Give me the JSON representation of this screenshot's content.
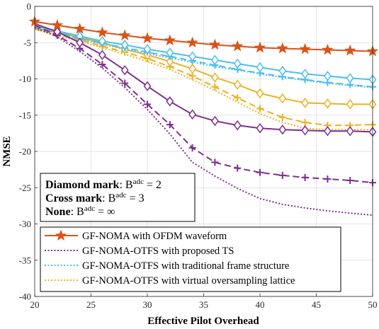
{
  "chart_data": {
    "type": "line",
    "xlabel": "Effective Pilot Overhead",
    "ylabel": "NMSE",
    "xlim": [
      20,
      50
    ],
    "ylim": [
      -40,
      0
    ],
    "xticks": [
      20,
      25,
      30,
      35,
      40,
      45,
      50
    ],
    "yticks": [
      0,
      -5,
      -10,
      -15,
      -20,
      -25,
      -30,
      -35,
      -40
    ],
    "grid": true,
    "annotation": {
      "lines": [
        {
          "bold": "Diamond mark",
          "rest": ": B",
          "sup": "adc",
          "value": " = 2"
        },
        {
          "bold": "Cross mark",
          "rest": ": B",
          "sup": "adc",
          "value": " = 3"
        },
        {
          "bold": "None",
          "rest": ": B",
          "sup": "adc",
          "value": " = ∞"
        }
      ]
    },
    "legend": {
      "position": "bottom-left",
      "entries": [
        {
          "label": "GF-NOMA with OFDM waveform",
          "color": "#D95319",
          "style": "solid",
          "marker": "star"
        },
        {
          "label": "GF-NOMA-OTFS with proposed TS",
          "color": "#7E2F8E",
          "style": "dotted",
          "marker": "none"
        },
        {
          "label": "GF-NOMA-OTFS with traditional frame structure",
          "color": "#4DBEEE",
          "style": "dotted",
          "marker": "none"
        },
        {
          "label": "GF-NOMA-OTFS with virtual oversampling lattice",
          "color": "#EDB120",
          "style": "dotted",
          "marker": "none"
        }
      ]
    },
    "series": [
      {
        "group": "GF-NOMA with OFDM waveform",
        "color": "#D95319",
        "style": "solid",
        "marker": "star",
        "x": [
          20,
          22,
          24,
          26,
          28,
          30,
          32,
          34,
          36,
          38,
          40,
          42,
          44,
          46,
          48,
          50
        ],
        "y": [
          -2.1,
          -2.6,
          -3.1,
          -3.6,
          -4.0,
          -4.4,
          -4.7,
          -5.0,
          -5.3,
          -5.5,
          -5.7,
          -5.8,
          -5.9,
          -6.0,
          -6.1,
          -6.2
        ]
      },
      {
        "group": "GF-NOMA-OTFS with proposed TS",
        "color": "#7E2F8E",
        "style": "solid",
        "marker": "diamond",
        "x": [
          20,
          22,
          24,
          26,
          28,
          30,
          32,
          34,
          36,
          38,
          40,
          42,
          44,
          46,
          48,
          50
        ],
        "y": [
          -2.4,
          -3.5,
          -5.0,
          -6.7,
          -8.8,
          -11.0,
          -13.1,
          -14.9,
          -15.8,
          -16.4,
          -16.8,
          -17.0,
          -17.1,
          -17.2,
          -17.2,
          -17.3
        ]
      },
      {
        "group": "GF-NOMA-OTFS with proposed TS",
        "color": "#7E2F8E",
        "style": "dashed",
        "marker": "plus",
        "x": [
          20,
          22,
          24,
          26,
          28,
          30,
          32,
          34,
          36,
          38,
          40,
          42,
          44,
          46,
          48,
          50
        ],
        "y": [
          -2.6,
          -4.0,
          -5.8,
          -8.0,
          -10.6,
          -13.5,
          -16.3,
          -19.5,
          -21.5,
          -22.3,
          -22.9,
          -23.3,
          -23.6,
          -23.8,
          -24.0,
          -24.3
        ]
      },
      {
        "group": "GF-NOMA-OTFS with proposed TS",
        "color": "#7E2F8E",
        "style": "dotted",
        "marker": "none",
        "x": [
          20,
          22,
          24,
          26,
          28,
          30,
          32,
          34,
          36,
          38,
          40,
          42,
          44,
          46,
          48,
          50
        ],
        "y": [
          -2.9,
          -4.2,
          -6.2,
          -8.5,
          -11.2,
          -14.2,
          -17.6,
          -21.5,
          -23.4,
          -25.1,
          -26.5,
          -27.3,
          -27.8,
          -28.2,
          -28.5,
          -28.8
        ]
      },
      {
        "group": "GF-NOMA-OTFS with traditional frame structure",
        "color": "#4DBEEE",
        "style": "solid",
        "marker": "diamond",
        "x": [
          20,
          22,
          24,
          26,
          28,
          30,
          32,
          34,
          36,
          38,
          40,
          42,
          44,
          46,
          48,
          50
        ],
        "y": [
          -2.7,
          -3.4,
          -4.1,
          -4.8,
          -5.3,
          -5.9,
          -6.4,
          -6.9,
          -7.4,
          -7.9,
          -8.4,
          -8.9,
          -9.3,
          -9.6,
          -9.9,
          -10.1
        ]
      },
      {
        "group": "GF-NOMA-OTFS with traditional frame structure",
        "color": "#4DBEEE",
        "style": "dashed",
        "marker": "plus",
        "x": [
          20,
          22,
          24,
          26,
          28,
          30,
          32,
          34,
          36,
          38,
          40,
          42,
          44,
          46,
          48,
          50
        ],
        "y": [
          -2.9,
          -3.6,
          -4.4,
          -5.1,
          -5.7,
          -6.3,
          -6.9,
          -7.5,
          -8.1,
          -8.7,
          -9.2,
          -9.7,
          -10.1,
          -10.5,
          -10.8,
          -11.1
        ]
      },
      {
        "group": "GF-NOMA-OTFS with traditional frame structure",
        "color": "#4DBEEE",
        "style": "dotted",
        "marker": "none",
        "x": [
          20,
          22,
          24,
          26,
          28,
          30,
          32,
          34,
          36,
          38,
          40,
          42,
          44,
          46,
          48,
          50
        ],
        "y": [
          -3.0,
          -3.7,
          -4.5,
          -5.2,
          -5.9,
          -6.5,
          -7.1,
          -7.7,
          -8.3,
          -8.8,
          -9.3,
          -9.8,
          -10.2,
          -10.6,
          -10.9,
          -11.2
        ]
      },
      {
        "group": "GF-NOMA-OTFS with virtual oversampling lattice",
        "color": "#EDB120",
        "style": "solid",
        "marker": "diamond",
        "x": [
          20,
          22,
          24,
          26,
          28,
          30,
          32,
          34,
          36,
          38,
          40,
          42,
          44,
          46,
          48,
          50
        ],
        "y": [
          -3.0,
          -3.6,
          -4.3,
          -5.0,
          -5.9,
          -6.7,
          -7.6,
          -8.6,
          -9.8,
          -10.8,
          -12.0,
          -12.7,
          -13.3,
          -13.4,
          -13.5,
          -13.5
        ]
      },
      {
        "group": "GF-NOMA-OTFS with virtual oversampling lattice",
        "color": "#EDB120",
        "style": "dashed",
        "marker": "plus",
        "x": [
          20,
          22,
          24,
          26,
          28,
          30,
          32,
          34,
          36,
          38,
          40,
          42,
          44,
          46,
          48,
          50
        ],
        "y": [
          -3.1,
          -3.9,
          -4.6,
          -5.5,
          -6.3,
          -7.2,
          -8.3,
          -9.6,
          -11.1,
          -12.6,
          -14.1,
          -15.3,
          -16.0,
          -16.4,
          -16.4,
          -16.3
        ]
      },
      {
        "group": "GF-NOMA-OTFS with virtual oversampling lattice",
        "color": "#EDB120",
        "style": "dotted",
        "marker": "none",
        "x": [
          20,
          22,
          24,
          26,
          28,
          30,
          32,
          34,
          36,
          38,
          40,
          42,
          44,
          46,
          48,
          50
        ],
        "y": [
          -3.2,
          -4.0,
          -4.8,
          -5.7,
          -6.6,
          -7.6,
          -8.7,
          -10.1,
          -11.6,
          -13.2,
          -14.8,
          -16.0,
          -16.8,
          -17.0,
          -17.0,
          -17.0
        ]
      }
    ]
  }
}
